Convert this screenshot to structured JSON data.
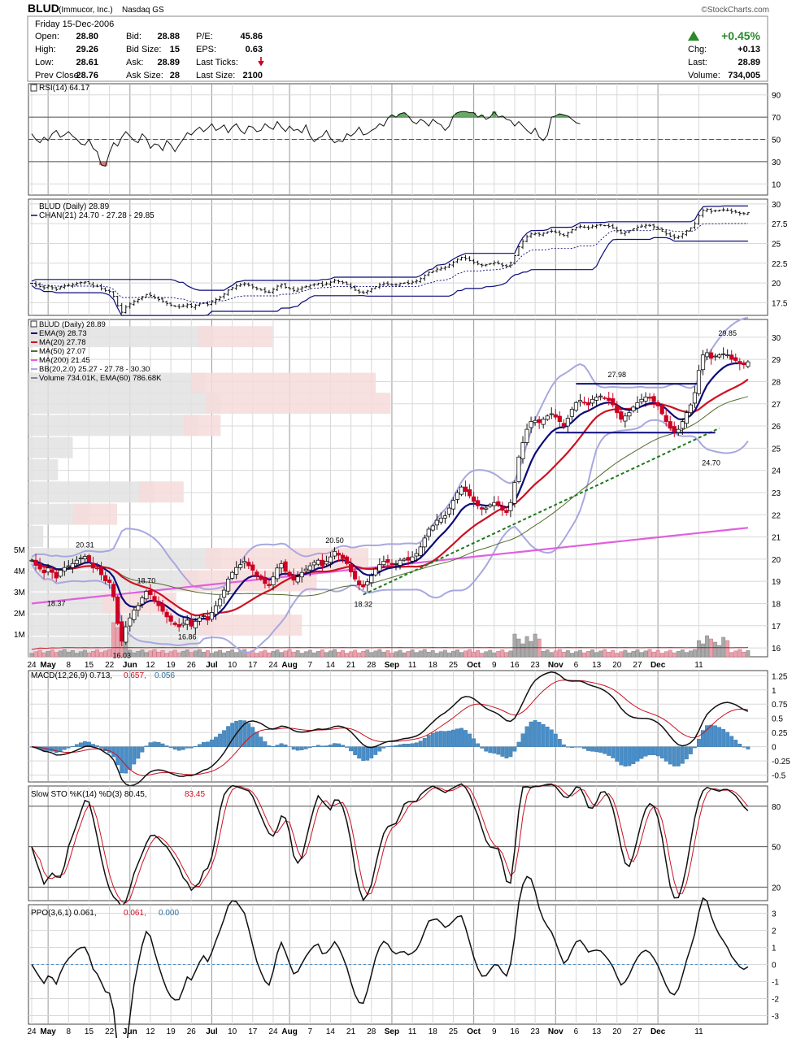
{
  "header": {
    "symbol": "BLUD",
    "company": "(Immucor, Inc.)",
    "exchange": "Nasdaq GS",
    "copyright": "©StockCharts.com",
    "date": "Friday  15-Dec-2006"
  },
  "quote": {
    "open_label": "Open:",
    "open": "28.80",
    "high_label": "High:",
    "high": "29.26",
    "low_label": "Low:",
    "low": "28.61",
    "prev_label": "Prev Close:",
    "prev": "28.76",
    "bid_label": "Bid:",
    "bid": "28.88",
    "bidsize_label": "Bid Size:",
    "bidsize": "15",
    "ask_label": "Ask:",
    "ask": "28.89",
    "asksize_label": "Ask Size:",
    "asksize": "28",
    "pe_label": "P/E:",
    "pe": "45.86",
    "eps_label": "EPS:",
    "eps": "0.63",
    "ticks_label": "Last Ticks:",
    "lastsize_label": "Last Size:",
    "lastsize": "2100",
    "pct": "+0.45%",
    "chg_label": "Chg:",
    "chg": "+0.13",
    "last_label": "Last:",
    "last": "28.89",
    "vol_label": "Volume:",
    "vol": "734,005"
  },
  "colors": {
    "up": "#2a8a2a",
    "down": "#cc0022",
    "ema": "#0b0b7a",
    "ma20": "#cc1122",
    "ma50": "#556b2f",
    "ma200": "#e060e0",
    "bb": "#a8a8e0",
    "macd_hist": "#4a8ec8",
    "green_fill": "#4e9a4e",
    "red_fill": "#c26b6b"
  },
  "x_axis": {
    "labels": [
      "24",
      "May",
      "8",
      "15",
      "22",
      "Jun",
      "12",
      "19",
      "26",
      "Jul",
      "10",
      "17",
      "24",
      "Aug",
      "7",
      "14",
      "21",
      "28",
      "Sep",
      "11",
      "18",
      "25",
      "Oct",
      "9",
      "16",
      "23",
      "Nov",
      "6",
      "13",
      "20",
      "27",
      "Dec",
      "11"
    ],
    "bold": [
      "May",
      "Jun",
      "Jul",
      "Aug",
      "Sep",
      "Oct",
      "Nov",
      "Dec"
    ]
  },
  "chart_data": [
    {
      "type": "line",
      "title": "RSI(14) 64.17",
      "legend": "RSI(14) 64.17",
      "yticks": [
        90,
        70,
        50,
        30,
        10
      ],
      "ylim": [
        0,
        100
      ],
      "levels": [
        70,
        30
      ],
      "dashed": [
        50
      ],
      "series": [
        {
          "name": "RSI(14)",
          "values": [
            55,
            50,
            47,
            52,
            49,
            55,
            58,
            52,
            54,
            57,
            53,
            50,
            46,
            45,
            50,
            42,
            39,
            27,
            26,
            38,
            47,
            44,
            52,
            57,
            53,
            49,
            47,
            55,
            51,
            42,
            46,
            45,
            40,
            49,
            45,
            39,
            45,
            50,
            56,
            54,
            58,
            61,
            57,
            60,
            64,
            58,
            60,
            63,
            56,
            61,
            64,
            58,
            55,
            62,
            61,
            57,
            58,
            64,
            61,
            59,
            66,
            61,
            57,
            62,
            58,
            59,
            56,
            63,
            53,
            48,
            51,
            53,
            58,
            51,
            47,
            49,
            48,
            55,
            53,
            56,
            61,
            54,
            55,
            58,
            60,
            64,
            62,
            69,
            72,
            70,
            73,
            74,
            71,
            66,
            64,
            68,
            66,
            62,
            68,
            65,
            63,
            58,
            62,
            71,
            74,
            75,
            75,
            74,
            74,
            70,
            72,
            68,
            70,
            75,
            70,
            71,
            68,
            67,
            62,
            66,
            62,
            58,
            55,
            60,
            52,
            49,
            54,
            70,
            71,
            73,
            72,
            71,
            68,
            65,
            64
          ]
        }
      ]
    },
    {
      "type": "line",
      "title": "BLUD (Daily) 28.89",
      "legend": [
        "BLUD (Daily) 28.89",
        "CHAN(21) 24.70 - 27.28 - 29.85"
      ],
      "yticks": [
        30.0,
        27.5,
        25.0,
        22.5,
        20.0,
        17.5
      ],
      "ylim": [
        15.9,
        30.6
      ],
      "note": "price closes with Donchian channel (21)"
    },
    {
      "type": "candlestick",
      "title": "BLUD (Daily) 28.89",
      "legend": [
        "BLUD (Daily) 28.89",
        "EMA(9) 28.73",
        "MA(20) 27.78",
        "MA(50) 27.07",
        "MA(200) 21.45",
        "BB(20,2.0) 25.27 - 27.78 - 30.30",
        "Volume 734.01K, EMA(60) 786.68K"
      ],
      "yticks": [
        30,
        29,
        28,
        27,
        26,
        25,
        24,
        23,
        22,
        21,
        20,
        19,
        18,
        17,
        16
      ],
      "ylim": [
        15.6,
        30.8
      ],
      "volume_ticks": [
        "5M",
        "4M",
        "3M",
        "2M",
        "1M"
      ],
      "annotations": [
        {
          "label": "20.31",
          "x_index": 13,
          "y": 20.31
        },
        {
          "label": "18.37",
          "x_index": 6,
          "y": 18.37
        },
        {
          "label": "18.70",
          "x_index": 28,
          "y": 18.7
        },
        {
          "label": "16.03",
          "x_index": 22,
          "y": 16.03
        },
        {
          "label": "16.86",
          "x_index": 38,
          "y": 16.86
        },
        {
          "label": "20.50",
          "x_index": 74,
          "y": 20.5
        },
        {
          "label": "18.32",
          "x_index": 81,
          "y": 18.32
        },
        {
          "label": "27.98",
          "x_index": 143,
          "y": 27.98
        },
        {
          "label": "24.70",
          "x_index": 166,
          "y": 24.7
        },
        {
          "label": "29.85",
          "x_index": 170,
          "y": 29.85
        }
      ],
      "closes": [
        19.95,
        19.72,
        19.55,
        19.38,
        19.6,
        19.4,
        19.15,
        19.5,
        19.62,
        19.7,
        19.8,
        19.95,
        20.05,
        20.12,
        19.9,
        19.6,
        19.58,
        19.3,
        19.02,
        18.95,
        18.3,
        17.1,
        16.3,
        16.95,
        17.35,
        17.7,
        17.9,
        18.25,
        18.55,
        18.4,
        18.1,
        17.9,
        17.65,
        17.4,
        17.2,
        17.05,
        16.95,
        17.1,
        17.25,
        16.98,
        17.2,
        17.35,
        17.45,
        17.25,
        17.6,
        17.9,
        18.2,
        18.6,
        19.1,
        19.4,
        19.62,
        19.75,
        19.9,
        19.7,
        19.5,
        19.25,
        19.1,
        18.9,
        18.8,
        19.2,
        19.6,
        19.8,
        19.45,
        19.25,
        19.05,
        19.2,
        19.4,
        19.55,
        19.7,
        19.85,
        19.95,
        19.7,
        19.9,
        20.1,
        20.35,
        20.18,
        20.02,
        19.8,
        19.42,
        19.1,
        18.85,
        18.75,
        18.98,
        19.25,
        19.55,
        19.75,
        19.9,
        19.85,
        19.75,
        19.8,
        19.95,
        20.0,
        19.95,
        20.1,
        20.25,
        20.55,
        20.95,
        21.35,
        21.5,
        21.75,
        21.85,
        21.95,
        22.3,
        22.65,
        23.0,
        23.25,
        23.05,
        22.85,
        22.6,
        22.4,
        22.25,
        22.3,
        22.45,
        22.55,
        22.45,
        22.2,
        22.1,
        22.55,
        23.45,
        24.6,
        25.25,
        25.85,
        26.2,
        26.25,
        26.15,
        26.3,
        26.45,
        26.55,
        26.4,
        26.2,
        26.0,
        26.35,
        26.75,
        27.05,
        27.15,
        27.05,
        26.95,
        27.2,
        27.3,
        27.35,
        27.25,
        27.15,
        26.95,
        26.6,
        26.3,
        26.45,
        26.6,
        26.85,
        27.05,
        27.2,
        27.3,
        27.25,
        27.1,
        26.9,
        26.55,
        26.2,
        25.9,
        25.75,
        25.85,
        26.2,
        26.6,
        26.95,
        27.5,
        28.5,
        29.2,
        29.3,
        29.05,
        29.15,
        29.2,
        29.25,
        29.2,
        29.0,
        28.95,
        28.8,
        28.76,
        28.89
      ]
    },
    {
      "type": "line",
      "title": "MACD(12,26,9) 0.713, 0.657, 0.056",
      "legend": [
        "MACD(12,26,9) 0.713, ",
        "0.657, ",
        "0.056"
      ],
      "yticks": [
        1.25,
        1.0,
        0.75,
        0.5,
        0.25,
        0.0,
        -0.25,
        -0.5
      ],
      "ylim": [
        -0.62,
        1.34
      ]
    },
    {
      "type": "line",
      "title": "Slow STO %K(14) %D(3) 80.45, 83.45",
      "legend": [
        "Slow STO %K(14) %D(3) 80.45, ",
        "83.45"
      ],
      "yticks": [
        80,
        50,
        20
      ],
      "ylim": [
        10,
        95
      ],
      "levels": [
        80,
        50,
        20
      ]
    },
    {
      "type": "line",
      "title": "PPO(3,6,1) 0.061, 0.061, 0.000",
      "legend": [
        "PPO(3,6,1) 0.061, ",
        "0.061, ",
        "0.000"
      ],
      "yticks": [
        3,
        2,
        1,
        0,
        -1,
        -2,
        -3
      ],
      "ylim": [
        -3.5,
        3.5
      ]
    }
  ]
}
